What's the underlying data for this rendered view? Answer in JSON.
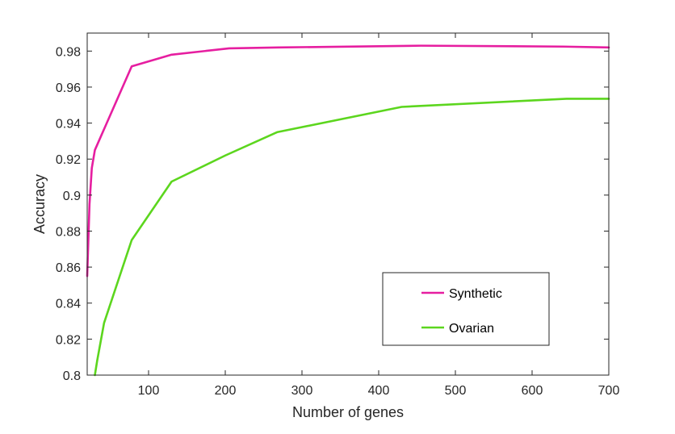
{
  "chart_data": {
    "type": "line",
    "title": "",
    "xlabel": "Number of genes",
    "ylabel": "Accuracy",
    "xlim": [
      20,
      700
    ],
    "ylim": [
      0.8,
      0.99
    ],
    "grid": false,
    "legend_position": "bottom-right",
    "x_ticks": [
      100,
      200,
      300,
      400,
      500,
      600,
      700
    ],
    "x_tick_labels": [
      "100",
      "200",
      "300",
      "400",
      "500",
      "600",
      "700"
    ],
    "y_ticks": [
      0.8,
      0.82,
      0.84,
      0.86,
      0.88,
      0.9,
      0.92,
      0.94,
      0.96,
      0.98
    ],
    "y_tick_labels": [
      "0.8",
      "0.82",
      "0.84",
      "0.86",
      "0.88",
      "0.9",
      "0.92",
      "0.94",
      "0.96",
      "0.98"
    ],
    "series": [
      {
        "name": "Synthetic",
        "color": "#e61ea0",
        "x": [
          20,
          23,
          26,
          30,
          78,
          130,
          205,
          270,
          455,
          640,
          700
        ],
        "y": [
          0.855,
          0.895,
          0.915,
          0.925,
          0.9715,
          0.978,
          0.9815,
          0.982,
          0.983,
          0.9825,
          0.982
        ]
      },
      {
        "name": "Ovarian",
        "color": "#5cd61e",
        "x": [
          30,
          33,
          42,
          78,
          130,
          200,
          268,
          430,
          645,
          700
        ],
        "y": [
          0.8,
          0.808,
          0.829,
          0.875,
          0.9075,
          0.922,
          0.935,
          0.949,
          0.9535,
          0.9535
        ]
      }
    ]
  }
}
